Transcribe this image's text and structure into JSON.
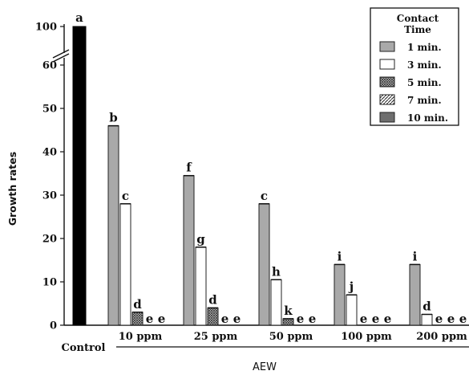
{
  "chart_data": {
    "type": "bar",
    "xlabel": "AEW",
    "ylabel": "Growth rates",
    "y_axis": {
      "lower_range": [
        0,
        60
      ],
      "upper_range": [
        100,
        100
      ],
      "break_between": [
        60,
        100
      ],
      "ticks": [
        0,
        10,
        20,
        30,
        40,
        50,
        60,
        100
      ]
    },
    "control": {
      "label": "Control",
      "value": 100,
      "letter": "a",
      "color": "#000000"
    },
    "legend": {
      "title_lines": [
        "Contact",
        "Time"
      ],
      "position": "top-right"
    },
    "series": [
      {
        "name": "1 min.",
        "fill": "#a9a9a9",
        "pattern": "solid-gray"
      },
      {
        "name": "3 min.",
        "fill": "#ffffff",
        "pattern": "white"
      },
      {
        "name": "5 min.",
        "fill": "#888888",
        "pattern": "crosshatch"
      },
      {
        "name": "7 min.",
        "fill": "#ffffff",
        "pattern": "diagonal"
      },
      {
        "name": "10 min.",
        "fill": "#6e6e6e",
        "pattern": "solid-dark"
      }
    ],
    "groups": [
      {
        "category": "10 ppm",
        "values": [
          46,
          28,
          3,
          0,
          0
        ],
        "letters": [
          "b",
          "c",
          "d",
          "e",
          "e"
        ]
      },
      {
        "category": "25 ppm",
        "values": [
          34.5,
          18,
          4,
          0,
          0
        ],
        "letters": [
          "f",
          "g",
          "d",
          "e",
          "e"
        ]
      },
      {
        "category": "50 ppm",
        "values": [
          28,
          10.5,
          1.5,
          0,
          0
        ],
        "letters": [
          "c",
          "h",
          "k",
          "e",
          "e"
        ]
      },
      {
        "category": "100 ppm",
        "values": [
          14,
          7,
          0,
          0,
          0
        ],
        "letters": [
          "i",
          "j",
          "e",
          "e",
          "e"
        ]
      },
      {
        "category": "200 ppm",
        "values": [
          14,
          2.5,
          0,
          0,
          0
        ],
        "letters": [
          "i",
          "d",
          "e",
          "e",
          "e"
        ]
      }
    ]
  }
}
